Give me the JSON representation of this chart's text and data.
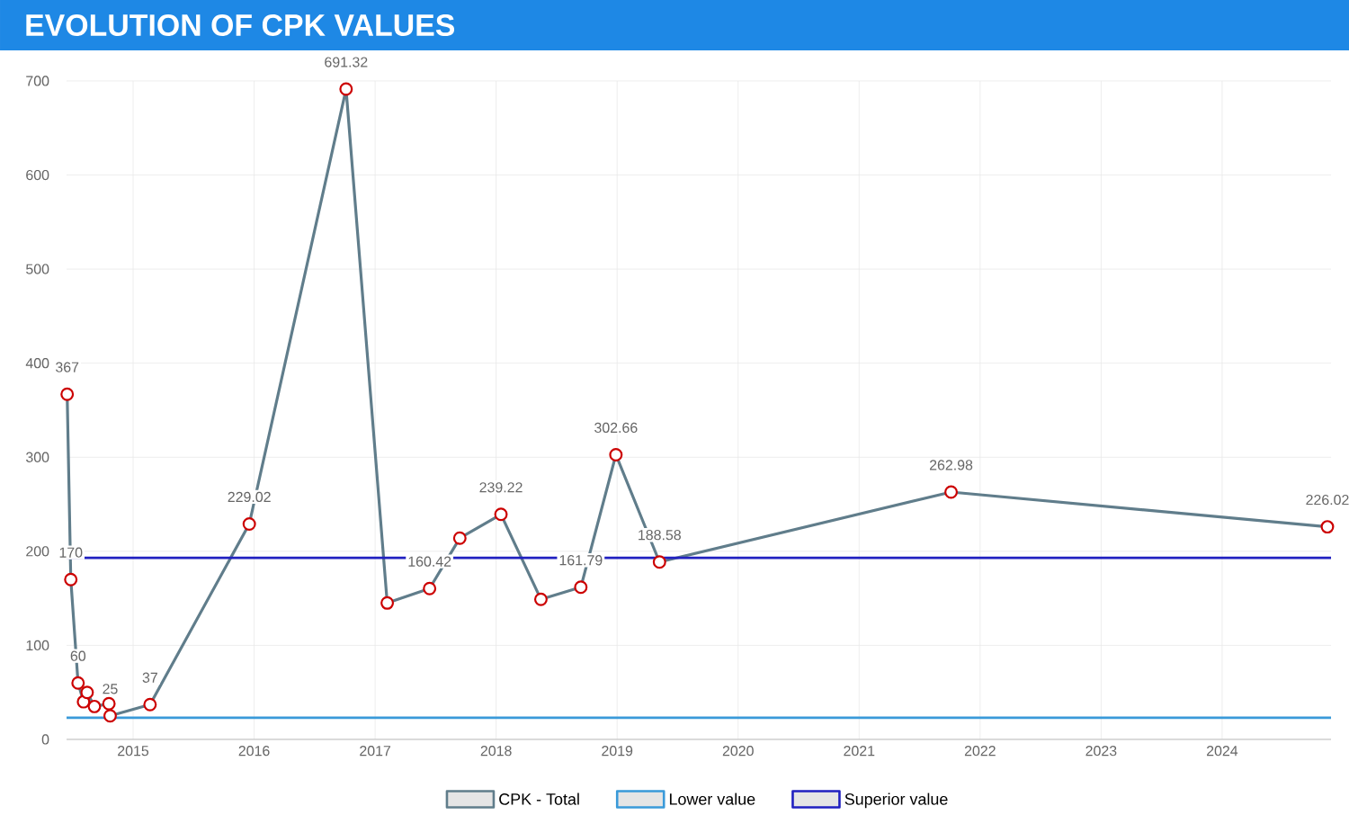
{
  "chart_data": {
    "type": "line",
    "title": "EVOLUTION OF CPK VALUES",
    "x": [
      2014.455,
      2014.485,
      2014.545,
      2014.59,
      2014.62,
      2014.68,
      2014.8,
      2014.81,
      2015.14,
      2015.96,
      2016.76,
      2017.1,
      2017.45,
      2017.7,
      2018.04,
      2018.37,
      2018.7,
      2018.99,
      2019.35,
      2021.76,
      2024.87
    ],
    "series": [
      {
        "name": "CPK - Total",
        "color": "#607d8b",
        "values": [
          367,
          170,
          60,
          40,
          50,
          35,
          38,
          25,
          37,
          229.02,
          691.32,
          145,
          160.42,
          214,
          239.22,
          149,
          161.79,
          302.66,
          188.58,
          262.98,
          226.02
        ],
        "value_labels": [
          "367",
          "170",
          "60",
          null,
          null,
          null,
          null,
          "25",
          "37",
          "229.02",
          "691.32",
          null,
          "160.42",
          null,
          "239.22",
          null,
          "161.79",
          "302.66",
          "188.58",
          "262.98",
          "226.02"
        ]
      }
    ],
    "xlim": [
      2014.45,
      2024.9
    ],
    "xticks": [
      2015,
      2016,
      2017,
      2018,
      2019,
      2020,
      2021,
      2022,
      2023,
      2024
    ],
    "ylim": [
      0,
      700
    ],
    "yticks": [
      0,
      100,
      200,
      300,
      400,
      500,
      600,
      700
    ],
    "ref_lines": [
      {
        "axis": "y",
        "value": 23,
        "label": "Lower value",
        "color": "#3a9ad9"
      },
      {
        "axis": "y",
        "value": 193,
        "label": "Superior value",
        "color": "#2020c0"
      }
    ],
    "grid": true,
    "legend": "bottom",
    "marker": "circle",
    "line_style": "solid"
  }
}
